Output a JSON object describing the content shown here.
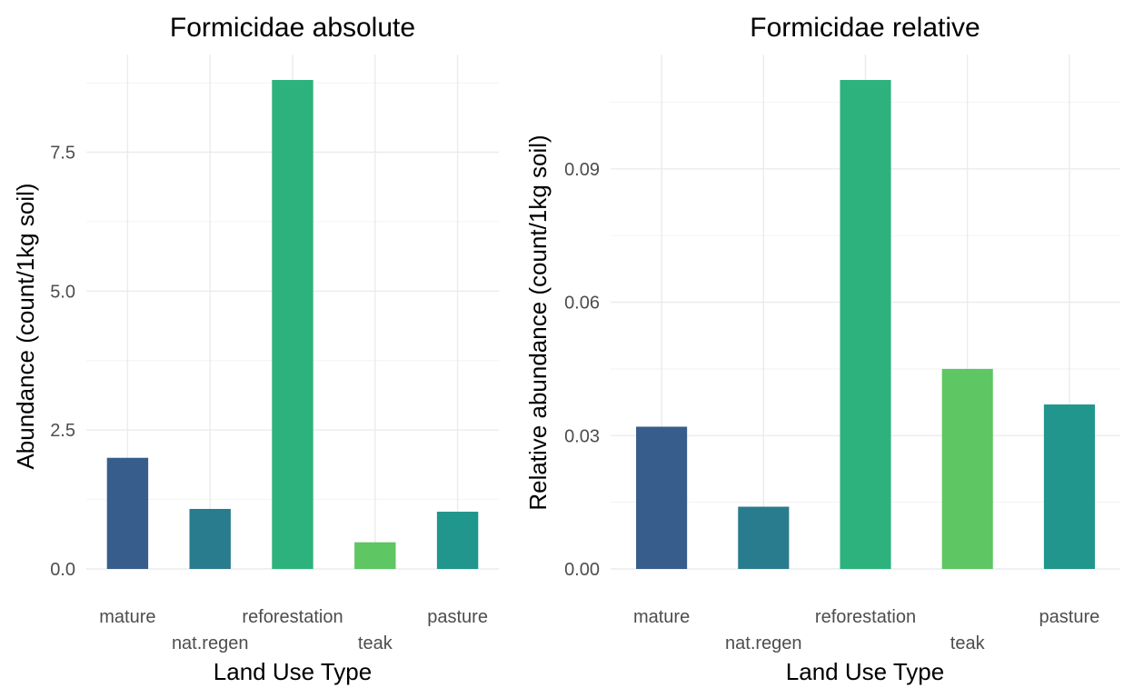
{
  "chart_data": [
    {
      "type": "bar",
      "title": "Formicidae absolute",
      "xlabel": "Land Use Type",
      "ylabel": "Abundance (count/1kg soil)",
      "categories": [
        "mature",
        "nat.regen",
        "reforestation",
        "teak",
        "pasture"
      ],
      "values": [
        2.0,
        1.08,
        8.8,
        0.48,
        1.03
      ],
      "colors": [
        "#365d8c",
        "#297b8e",
        "#2db27d",
        "#5ec662",
        "#20968c"
      ],
      "ylim": [
        0,
        8.8
      ],
      "yticks": [
        0.0,
        2.5,
        5.0,
        7.5
      ],
      "ytick_labels": [
        "0.0",
        "2.5",
        "5.0",
        "7.5"
      ],
      "grid": true,
      "legend": "none"
    },
    {
      "type": "bar",
      "title": "Formicidae relative",
      "xlabel": "Land Use Type",
      "ylabel": "Relative abundance (count/1kg soil)",
      "categories": [
        "mature",
        "nat.regen",
        "reforestation",
        "teak",
        "pasture"
      ],
      "values": [
        0.032,
        0.014,
        0.11,
        0.045,
        0.037
      ],
      "colors": [
        "#365d8c",
        "#297b8e",
        "#2db27d",
        "#5ec662",
        "#20968c"
      ],
      "ylim": [
        0,
        0.11
      ],
      "yticks": [
        0.0,
        0.03,
        0.06,
        0.09
      ],
      "ytick_labels": [
        "0.00",
        "0.03",
        "0.06",
        "0.09"
      ],
      "grid": true,
      "legend": "none"
    }
  ]
}
